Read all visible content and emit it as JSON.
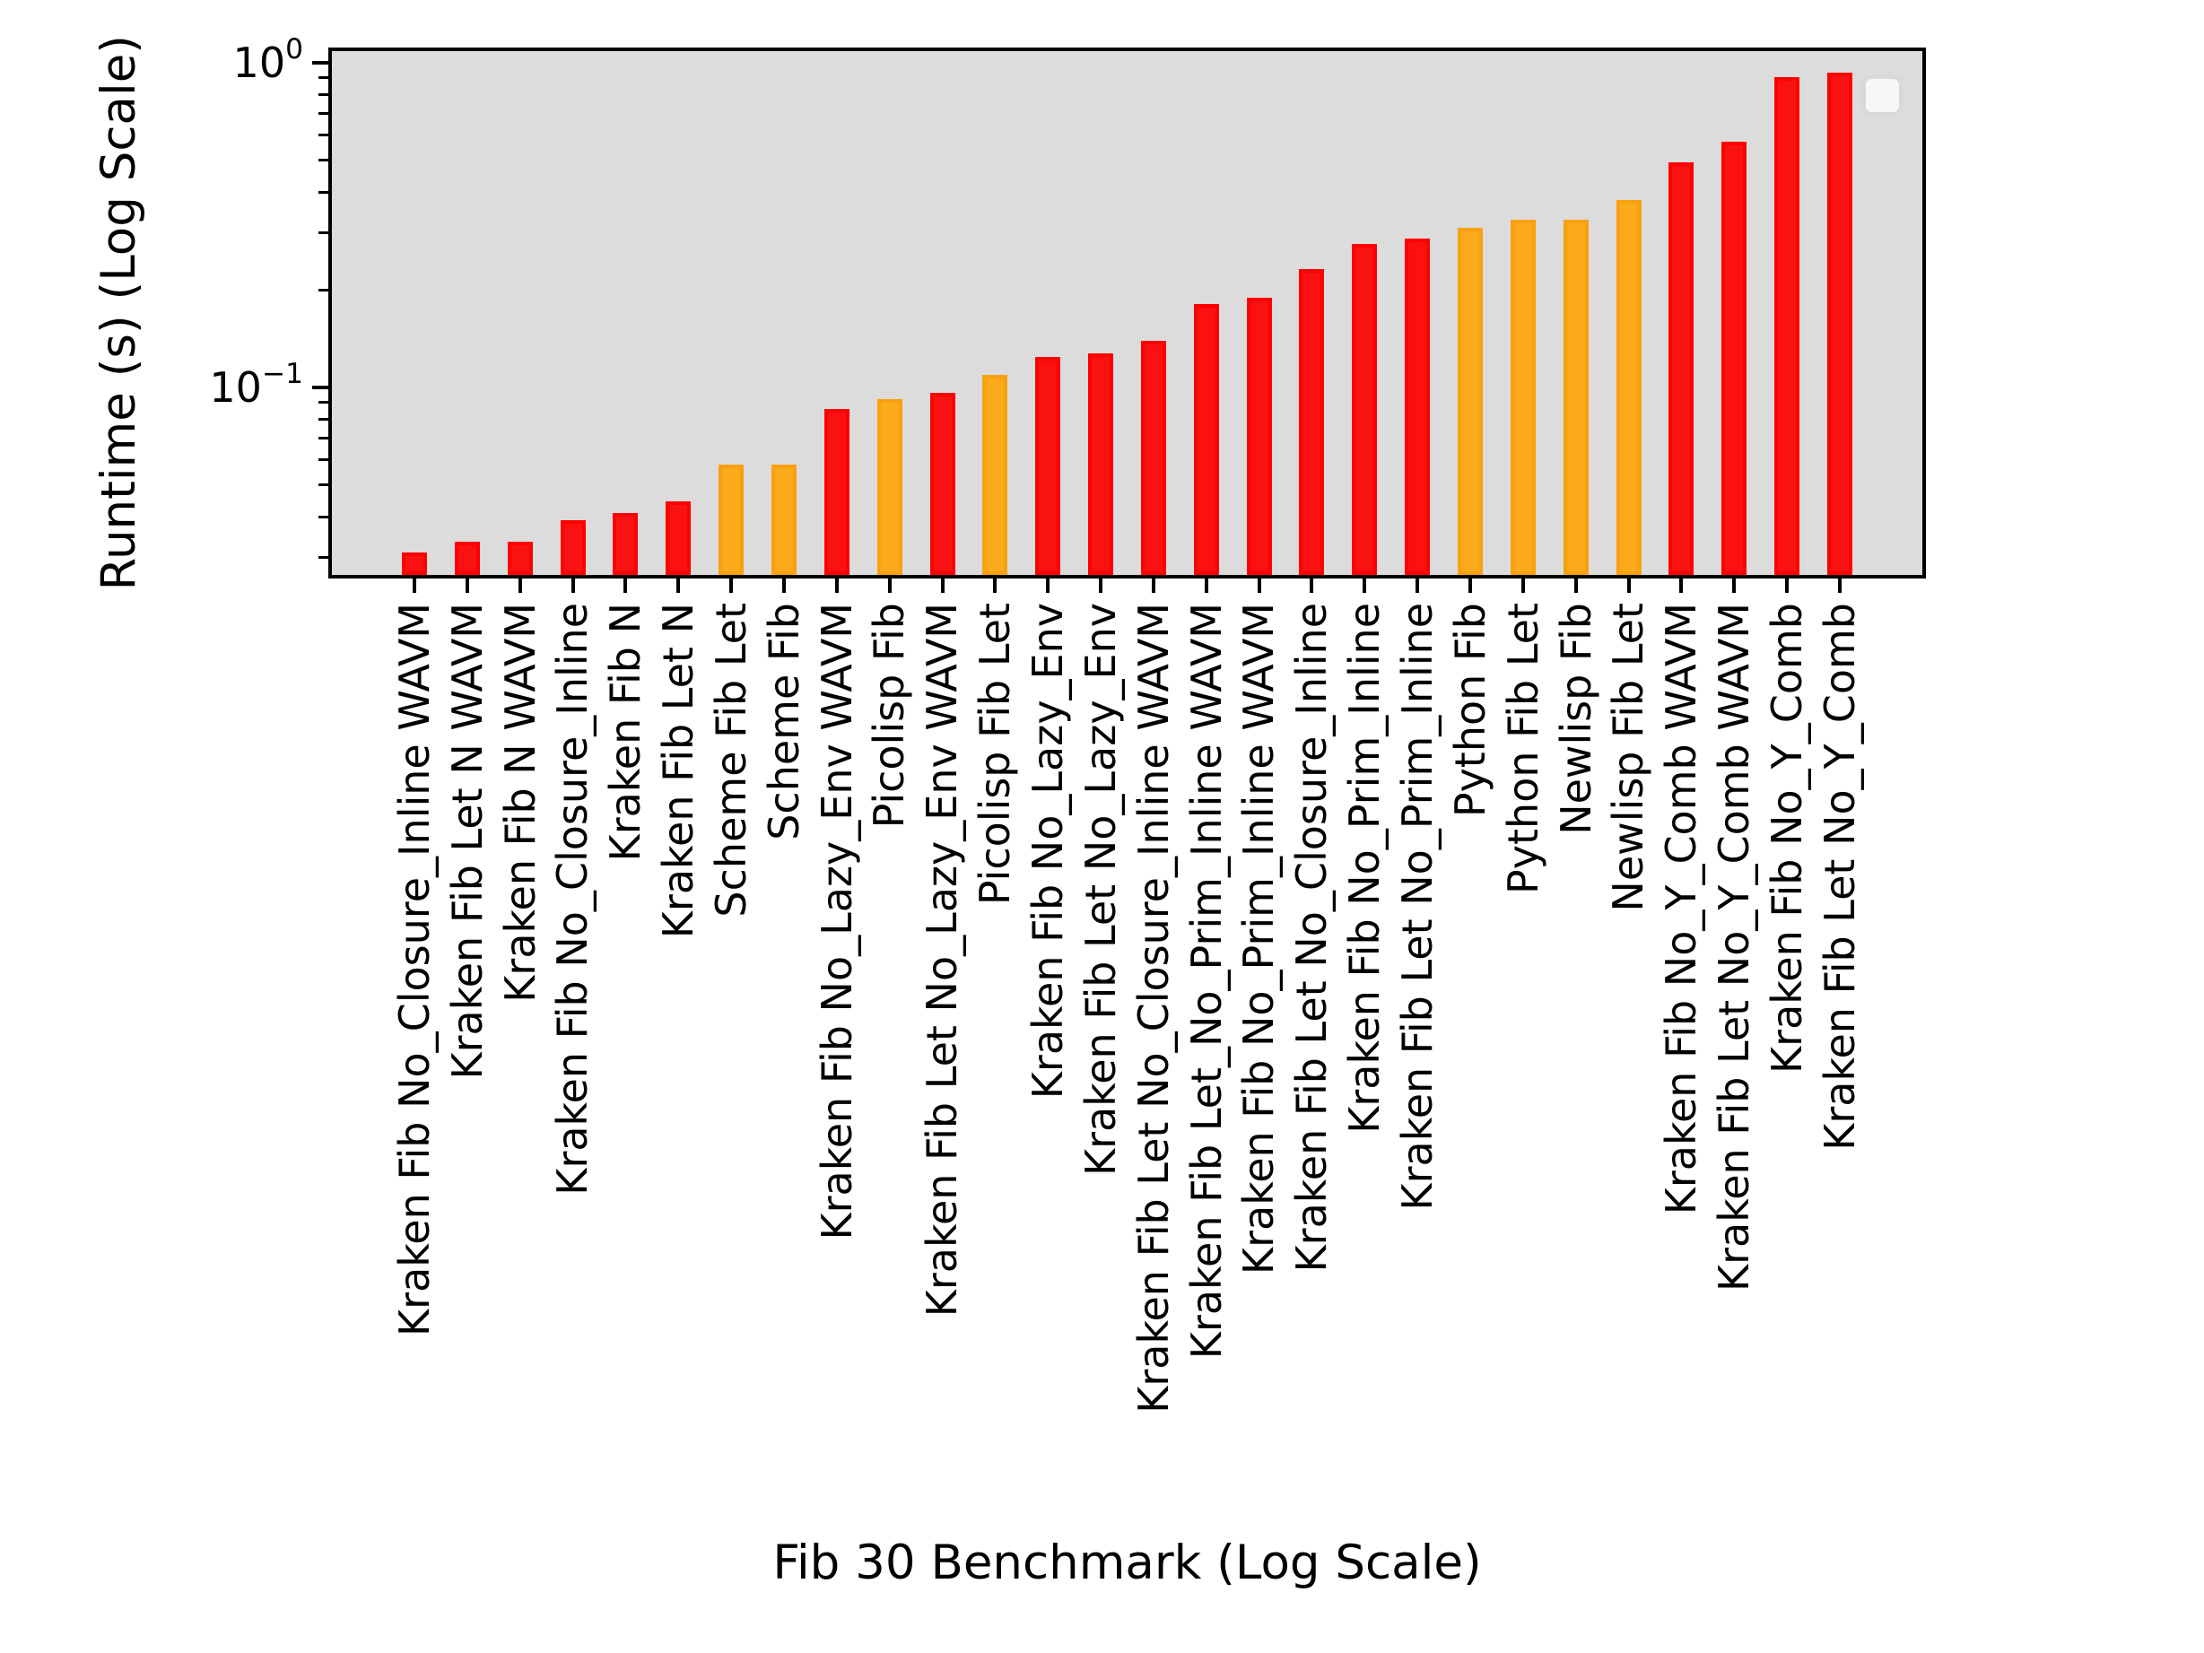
{
  "chart_data": {
    "type": "bar",
    "title": "",
    "xlabel": "Fib 30 Benchmark (Log Scale)",
    "ylabel": "Runtime (s) (Log Scale)",
    "yscale": "log",
    "ylim": [
      0.026,
      1.1
    ],
    "grid": false,
    "legend": {
      "present": true,
      "entries": [],
      "position": "upper-right",
      "empty": true
    },
    "y_major_ticks": [
      {
        "value": 1,
        "base": "10",
        "exp": "0"
      },
      {
        "value": 0.1,
        "base": "10",
        "exp": "−1"
      }
    ],
    "y_minor_ticks": [
      0.9,
      0.8,
      0.7,
      0.6,
      0.5,
      0.4,
      0.3,
      0.2,
      0.09,
      0.08,
      0.07,
      0.06,
      0.05,
      0.04,
      0.03
    ],
    "palette": {
      "red_fill": "#fa1111",
      "red_edge": "#ff0000",
      "orange_fill": "#fbaa1b",
      "orange_edge": "#f9a00e",
      "plot_background": "#dcdcdc",
      "figure_background": "#ffffff",
      "legend_fill": "#f7f7f7",
      "legend_border": "#d9d9d9"
    },
    "categories": [
      "Kraken Fib No_Closure_Inline WAVM",
      "Kraken Fib Let N WAVM",
      "Kraken Fib N WAVM",
      "Kraken Fib No_Closure_Inline",
      "Kraken Fib N",
      "Kraken Fib Let N",
      "Scheme Fib Let",
      "Scheme Fib",
      "Kraken Fib No_Lazy_Env WAVM",
      "Picolisp Fib",
      "Kraken Fib Let No_Lazy_Env WAVM",
      "Picolisp Fib Let",
      "Kraken Fib No_Lazy_Env",
      "Kraken Fib Let No_Lazy_Env",
      "Kraken Fib Let No_Closure_Inline WAVM",
      "Kraken Fib Let_No_Prim_Inline WAVM",
      "Kraken Fib No_Prim_Inline WAVM",
      "Kraken Fib Let No_Closure_Inline",
      "Kraken Fib No_Prim_Inline",
      "Kraken Fib Let No_Prim_Inline",
      "Python Fib",
      "Python Fib Let",
      "Newlisp Fib",
      "Newlisp Fib Let",
      "Kraken Fib No_Y_Comb WAVM",
      "Kraken Fib Let No_Y_Comb WAVM",
      "Kraken Fib No_Y_Comb",
      "Kraken Fib Let No_Y_Comb"
    ],
    "values": [
      0.031,
      0.0335,
      0.0335,
      0.039,
      0.041,
      0.0445,
      0.058,
      0.058,
      0.086,
      0.092,
      0.096,
      0.109,
      0.124,
      0.127,
      0.139,
      0.181,
      0.189,
      0.232,
      0.277,
      0.288,
      0.31,
      0.329,
      0.329,
      0.378,
      0.494,
      0.571,
      0.902,
      0.932
    ],
    "colors": [
      "red",
      "red",
      "red",
      "red",
      "red",
      "red",
      "orange",
      "orange",
      "red",
      "orange",
      "red",
      "orange",
      "red",
      "red",
      "red",
      "red",
      "red",
      "red",
      "red",
      "red",
      "orange",
      "orange",
      "orange",
      "orange",
      "red",
      "red",
      "red",
      "red"
    ]
  }
}
